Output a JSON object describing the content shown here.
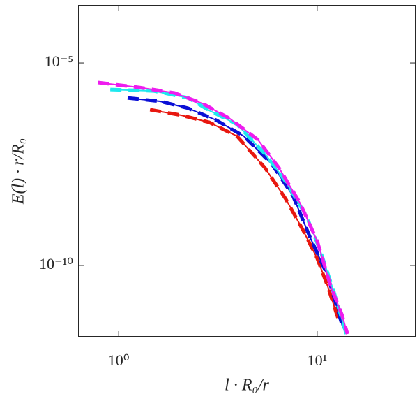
{
  "chart_data": {
    "type": "line",
    "xlabel": "l · R₀/r",
    "ylabel": "E(l) · r/R₀",
    "log_x": true,
    "log_y": true,
    "xlim": [
      0.63,
      31.3
    ],
    "ylim": [
      1.74e-12,
      0.00026
    ],
    "xticks": [
      {
        "value": 1,
        "label": "10⁰"
      },
      {
        "value": 10,
        "label": "10¹"
      }
    ],
    "yticks": [
      {
        "value": 1e-10,
        "label": "10⁻¹⁰"
      },
      {
        "value": 1e-05,
        "label": "10⁻⁵"
      }
    ],
    "series": [
      {
        "color": "#e8170f",
        "x": [
          1.44,
          2.07,
          2.86,
          3.95,
          5.45,
          6.95,
          8.5,
          10,
          11.3,
          12.7
        ],
        "values": [
          7e-07,
          5.1e-07,
          3.42e-07,
          1.55e-07,
          2.59e-08,
          4.35e-09,
          7.3e-10,
          1.49e-10,
          3.04e-11,
          5.1e-12
        ]
      },
      {
        "color": "#0a0fd6",
        "x": [
          1.11,
          1.62,
          2.24,
          3.1,
          4.28,
          5.91,
          7.54,
          9.22,
          11.3,
          13.5
        ],
        "values": [
          1.37e-06,
          1.13e-06,
          7.57e-07,
          3.86e-07,
          1.55e-07,
          3.16e-08,
          5.3e-09,
          4.9e-10,
          5.5e-11,
          2.8e-12
        ]
      },
      {
        "color": "#1ee8ee",
        "x": [
          0.908,
          1.5,
          2.24,
          2.86,
          3.95,
          5.45,
          6.95,
          8.85,
          10.4,
          12.2,
          14.0
        ],
        "values": [
          2.21e-06,
          2.04e-06,
          1.37e-06,
          6.7e-07,
          3.04e-07,
          5.74e-08,
          1.17e-08,
          1.61e-09,
          2.21e-10,
          2.04e-11,
          2.04e-12
        ]
      },
      {
        "color": "#ee1cee",
        "x": [
          0.785,
          1.27,
          1.91,
          2.64,
          3.64,
          5.03,
          6.41,
          8.17,
          10,
          11.7,
          13.3,
          14.2
        ],
        "values": [
          3.29e-06,
          2.49e-06,
          1.82e-06,
          1e-06,
          4.18e-07,
          1.27e-07,
          2.59e-08,
          3.56e-09,
          4.01e-10,
          3.04e-11,
          6.2e-12,
          2.04e-12
        ]
      }
    ]
  }
}
